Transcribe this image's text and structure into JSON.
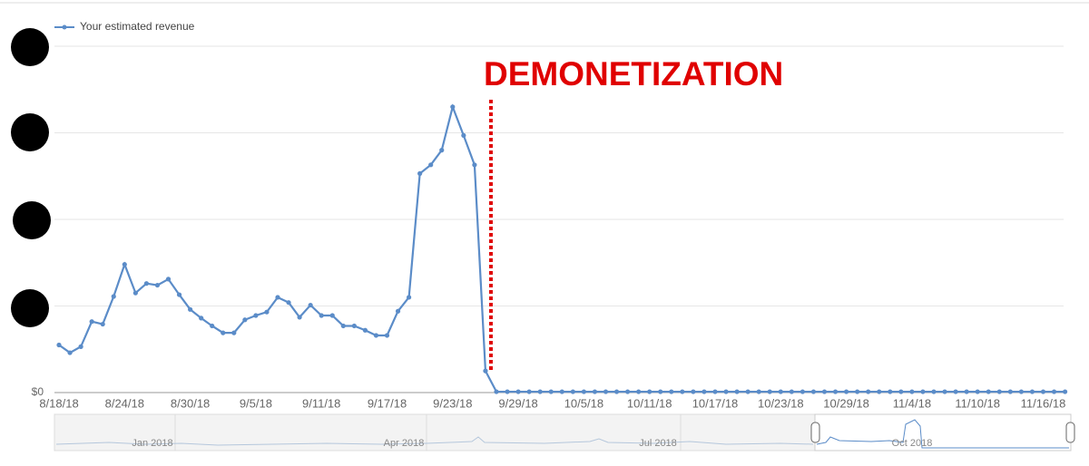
{
  "chart_data": {
    "type": "line",
    "legend": "Your estimated revenue",
    "annotation": "DEMONETIZATION",
    "categories": [
      "8/18/18",
      null,
      null,
      null,
      null,
      null,
      "8/24/18",
      null,
      null,
      null,
      null,
      null,
      "8/30/18",
      null,
      null,
      null,
      null,
      null,
      "9/5/18",
      null,
      null,
      null,
      null,
      null,
      "9/11/18",
      null,
      null,
      null,
      null,
      null,
      "9/17/18",
      null,
      null,
      null,
      null,
      null,
      "9/23/18",
      null,
      null,
      null,
      null,
      null,
      "9/29/18",
      null,
      null,
      null,
      null,
      null,
      "10/5/18",
      null,
      null,
      null,
      null,
      null,
      "10/11/18",
      null,
      null,
      null,
      null,
      null,
      "10/17/18",
      null,
      null,
      null,
      null,
      null,
      "10/23/18",
      null,
      null,
      null,
      null,
      null,
      "10/29/18",
      null,
      null,
      null,
      null,
      null,
      "11/4/18",
      null,
      null,
      null,
      null,
      null,
      "11/10/18",
      null,
      null,
      null,
      null,
      null,
      "11/16/18",
      null,
      null
    ],
    "series": [
      {
        "name": "Your estimated revenue",
        "color": "#5b8cc8",
        "values": [
          0.55,
          0.46,
          0.53,
          0.82,
          0.79,
          1.11,
          1.48,
          1.15,
          1.26,
          1.24,
          1.31,
          1.13,
          0.96,
          0.86,
          0.77,
          0.69,
          0.69,
          0.84,
          0.89,
          0.93,
          1.1,
          1.04,
          0.87,
          1.01,
          0.89,
          0.89,
          0.77,
          0.77,
          0.72,
          0.66,
          0.66,
          0.94,
          1.1,
          2.53,
          2.63,
          2.8,
          3.3,
          2.97,
          2.63,
          0.25,
          0.01,
          0.01,
          0.01,
          0.01,
          0.01,
          0.01,
          0.01,
          0.01,
          0.01,
          0.01,
          0.01,
          0.01,
          0.01,
          0.01,
          0.01,
          0.01,
          0.01,
          0.01,
          0.01,
          0.01,
          0.01,
          0.01,
          0.01,
          0.01,
          0.01,
          0.01,
          0.01,
          0.01,
          0.01,
          0.01,
          0.01,
          0.01,
          0.01,
          0.01,
          0.01,
          0.01,
          0.01,
          0.01,
          0.01,
          0.01,
          0.01,
          0.01,
          0.01,
          0.01,
          0.01,
          0.01,
          0.01,
          0.01,
          0.01,
          0.01,
          0.01,
          0.01,
          0.01
        ]
      }
    ],
    "ylim": [
      0,
      4
    ],
    "yticks": [
      {
        "value": 0,
        "label": "$0"
      }
    ],
    "gridlines": [
      0,
      1,
      2,
      3,
      4
    ],
    "navigator": {
      "labels": [
        "Jan 2018",
        "Apr 2018",
        "Jul 2018",
        "Oct 2018"
      ]
    }
  }
}
